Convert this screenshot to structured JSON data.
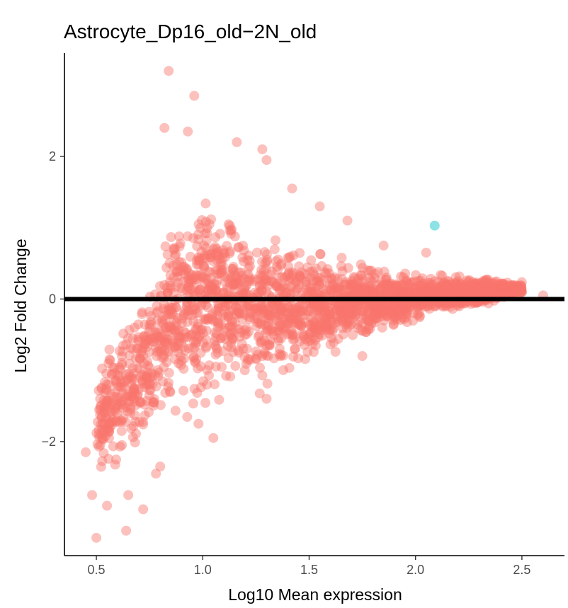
{
  "chart_data": {
    "type": "scatter",
    "title": "Astrocyte_Dp16_old−2N_old",
    "xlabel": "Log10 Mean expression",
    "ylabel": "Log2 Fold Change",
    "xlim": [
      0.35,
      2.7
    ],
    "ylim": [
      -3.6,
      3.45
    ],
    "x_ticks": [
      0.5,
      1.0,
      1.5,
      2.0,
      2.5
    ],
    "x_tick_labels": [
      "0.5",
      "1.0",
      "1.5",
      "2.0",
      "2.5"
    ],
    "y_ticks": [
      -2,
      0,
      2
    ],
    "y_tick_labels": [
      "−2",
      "0",
      "2"
    ],
    "reference_line": {
      "y": 0,
      "color": "#000000"
    },
    "grid": false,
    "legend": "none",
    "series": [
      {
        "color": "#F8766D",
        "opacity": 0.45,
        "envelope": {
          "x": [
            0.5,
            0.6,
            0.7,
            0.8,
            0.9,
            1.0,
            1.2,
            1.4,
            1.6,
            1.8,
            2.0,
            2.2,
            2.4,
            2.5
          ],
          "upper": [
            -0.9,
            -0.2,
            0.25,
            0.8,
            1.6,
            1.75,
            1.35,
            0.95,
            0.7,
            0.55,
            0.4,
            0.35,
            0.3,
            0.25
          ],
          "lower": [
            -2.7,
            -2.5,
            -2.35,
            -2.1,
            -1.9,
            -1.75,
            -1.55,
            -1.2,
            -0.85,
            -0.6,
            -0.35,
            -0.2,
            -0.05,
            0.05
          ]
        },
        "outliers": [
          [
            0.84,
            3.2
          ],
          [
            0.96,
            2.85
          ],
          [
            0.82,
            2.4
          ],
          [
            0.93,
            2.35
          ],
          [
            1.16,
            2.2
          ],
          [
            1.28,
            2.1
          ],
          [
            1.3,
            1.95
          ],
          [
            1.42,
            1.55
          ],
          [
            1.55,
            1.3
          ],
          [
            1.68,
            1.1
          ],
          [
            1.85,
            0.75
          ],
          [
            2.05,
            0.65
          ],
          [
            2.6,
            0.05
          ],
          [
            1.3,
            -1.4
          ],
          [
            1.05,
            -1.95
          ],
          [
            0.8,
            -2.35
          ],
          [
            0.65,
            -2.75
          ],
          [
            0.5,
            -3.35
          ],
          [
            0.64,
            -3.25
          ],
          [
            0.48,
            -2.75
          ],
          [
            0.62,
            -2.05
          ],
          [
            0.78,
            -2.45
          ],
          [
            0.45,
            -2.15
          ],
          [
            0.72,
            -2.95
          ],
          [
            0.98,
            -1.75
          ],
          [
            1.75,
            -0.8
          ],
          [
            0.55,
            -2.9
          ]
        ]
      },
      {
        "color": "#00BFC4",
        "opacity": 0.45,
        "points": [
          [
            2.09,
            1.03
          ]
        ]
      }
    ]
  }
}
